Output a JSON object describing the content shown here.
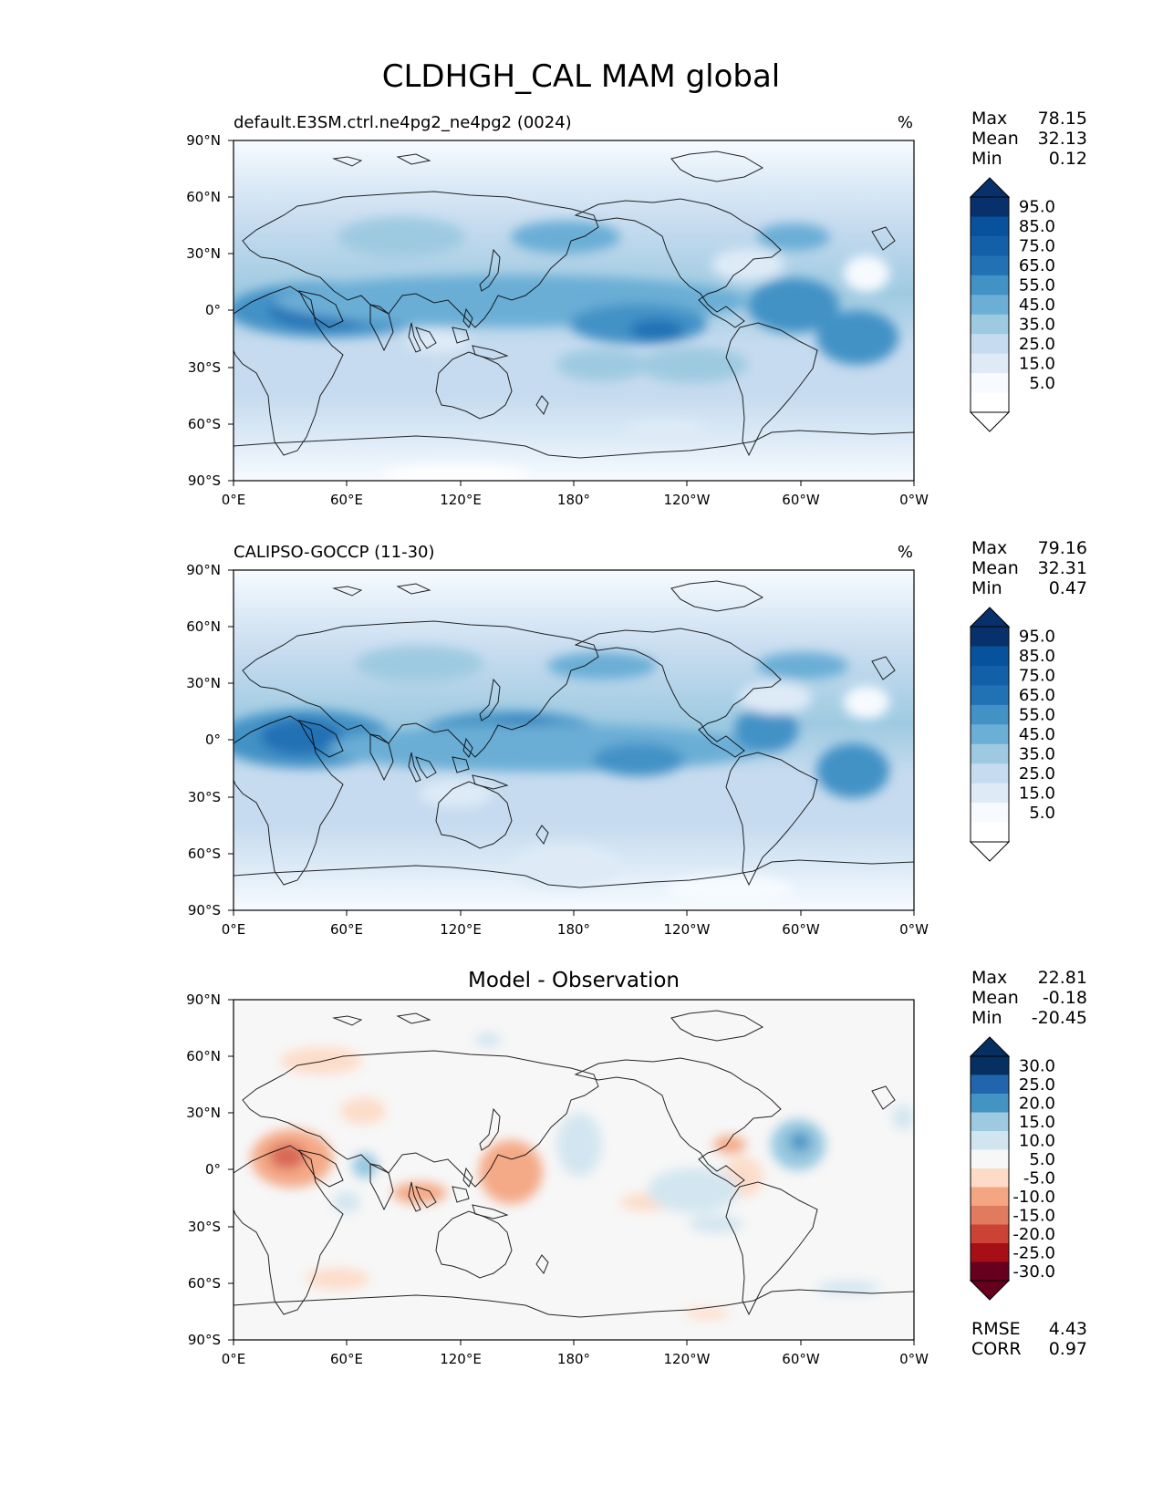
{
  "title": "CLDHGH_CAL MAM global",
  "x_ticks": [
    "0°E",
    "60°E",
    "120°E",
    "180°",
    "120°W",
    "60°W",
    "0°W"
  ],
  "y_ticks": [
    "90°N",
    "60°N",
    "30°N",
    "0°",
    "30°S",
    "60°S",
    "90°S"
  ],
  "panels": [
    {
      "id": "test",
      "title_left": "default.E3SM.ctrl.ne4pg2_ne4pg2 (0024)",
      "title_center": "",
      "units": "%",
      "stats": [
        {
          "label": "Max",
          "value": "78.15"
        },
        {
          "label": "Mean",
          "value": "32.13"
        },
        {
          "label": "Min",
          "value": "0.12"
        }
      ],
      "colorbar": {
        "colors": [
          "#ffffff",
          "#f7fbff",
          "#deebf7",
          "#c6dbef",
          "#9ecae1",
          "#6baed6",
          "#4292c6",
          "#2171b5",
          "#1460a8",
          "#08519c",
          "#08306b"
        ],
        "labels": [
          "95.0",
          "85.0",
          "75.0",
          "65.0",
          "55.0",
          "45.0",
          "35.0",
          "25.0",
          "15.0",
          "5.0"
        ]
      },
      "footer": []
    },
    {
      "id": "reference",
      "title_left": "CALIPSO-GOCCP (11-30)",
      "title_center": "",
      "units": "%",
      "stats": [
        {
          "label": "Max",
          "value": "79.16"
        },
        {
          "label": "Mean",
          "value": "32.31"
        },
        {
          "label": "Min",
          "value": "0.47"
        }
      ],
      "colorbar": {
        "colors": [
          "#ffffff",
          "#f7fbff",
          "#deebf7",
          "#c6dbef",
          "#9ecae1",
          "#6baed6",
          "#4292c6",
          "#2171b5",
          "#1460a8",
          "#08519c",
          "#08306b"
        ],
        "labels": [
          "95.0",
          "85.0",
          "75.0",
          "65.0",
          "55.0",
          "45.0",
          "35.0",
          "25.0",
          "15.0",
          "5.0"
        ]
      },
      "footer": []
    },
    {
      "id": "diff",
      "title_left": "",
      "title_center": "Model - Observation",
      "units": "",
      "stats": [
        {
          "label": "Max",
          "value": "22.81"
        },
        {
          "label": "Mean",
          "value": "-0.18"
        },
        {
          "label": "Min",
          "value": "-20.45"
        }
      ],
      "colorbar": {
        "colors": [
          "#67001f",
          "#a50f15",
          "#cb4335",
          "#e07b5f",
          "#f4a582",
          "#fddbc7",
          "#f7f7f7",
          "#d1e5f0",
          "#9ecae1",
          "#4393c3",
          "#2166ac",
          "#053061"
        ],
        "labels": [
          "30.0",
          "25.0",
          "20.0",
          "15.0",
          "10.0",
          "5.0",
          "-5.0",
          "-10.0",
          "-15.0",
          "-20.0",
          "-25.0",
          "-30.0"
        ]
      },
      "footer": [
        {
          "label": "RMSE",
          "value": "4.43"
        },
        {
          "label": "CORR",
          "value": "0.97"
        }
      ]
    }
  ]
}
